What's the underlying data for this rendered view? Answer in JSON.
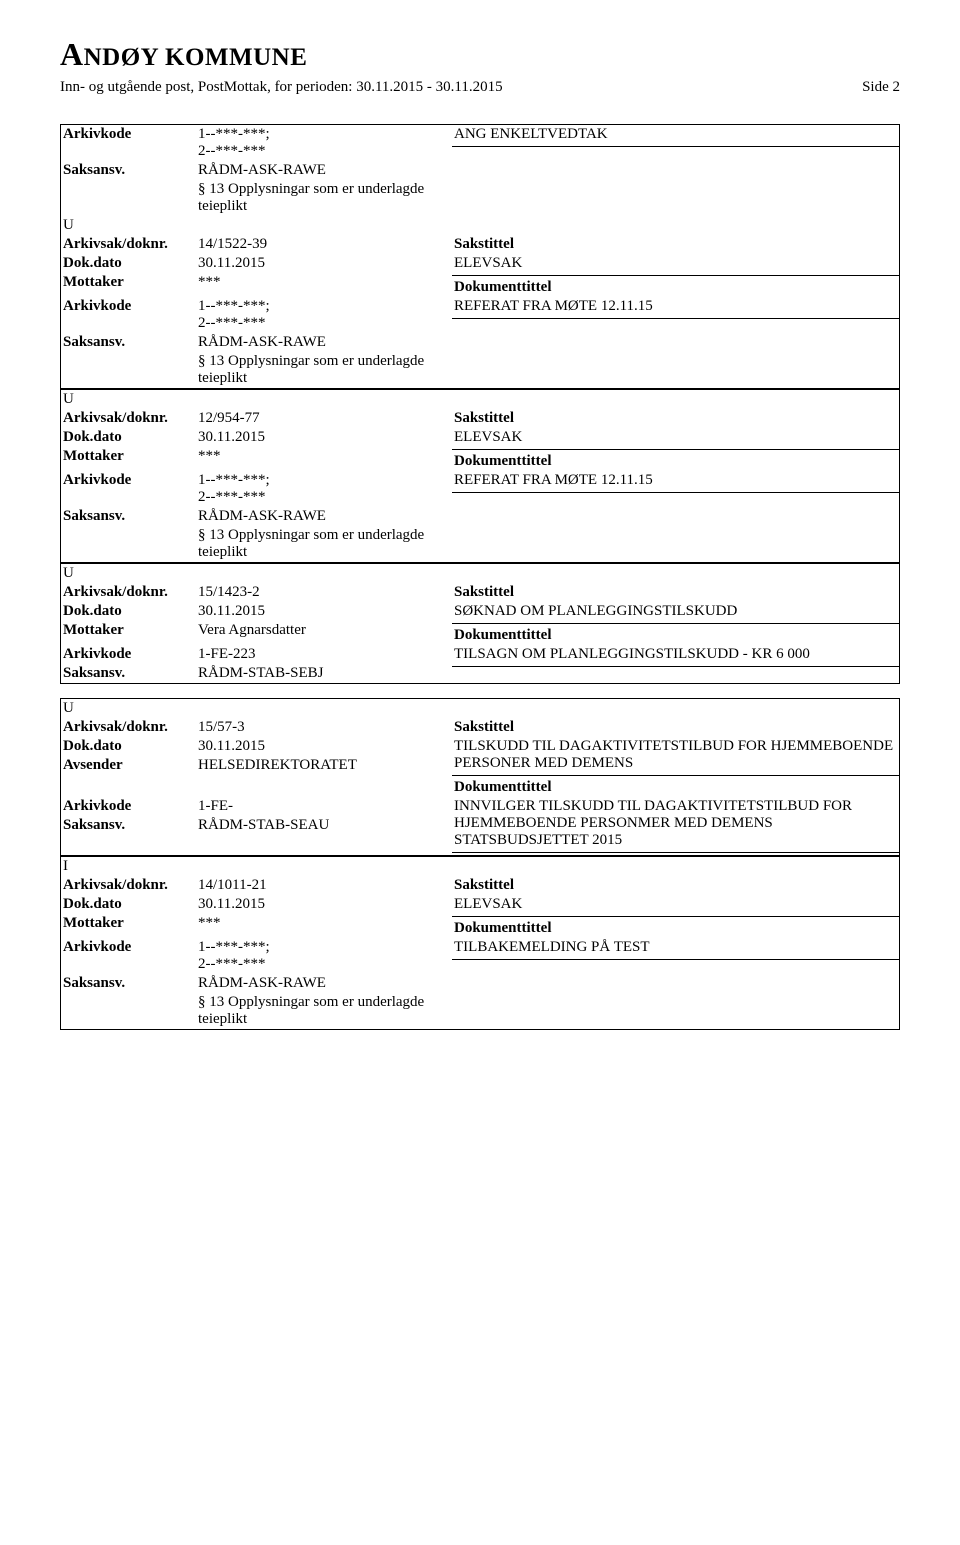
{
  "header": {
    "title_first": "A",
    "title_rest": "NDØY KOMMUNE",
    "subtitle": "Inn- og utgående post, PostMottak, for perioden: 30.11.2015 - 30.11.2015",
    "side": "Side 2"
  },
  "labels": {
    "arkivkode": "Arkivkode",
    "saksansv": "Saksansv.",
    "arkivsak": "Arkivsak/doknr.",
    "dokdato": "Dok.dato",
    "mottaker": "Mottaker",
    "avsender": "Avsender",
    "sakstittel": "Sakstittel",
    "dokumenttittel": "Dokumenttittel"
  },
  "blocks": [
    {
      "pre": {
        "arkivkode": "1--***-***;\n2--***-***",
        "saksansv": "RÅDM-ASK-RAWE",
        "unntak": "§ 13 Opplysningar som er underlagde teieplikt",
        "right_top": "ANG ENKELTVEDTAK"
      },
      "io": "U",
      "arkivsak": "14/1522-39",
      "dokdato": "30.11.2015",
      "party_label": "Mottaker",
      "party": "***",
      "sakstittel": "ELEVSAK",
      "arkivkode": "1--***-***;\n2--***-***",
      "saksansv": "RÅDM-ASK-RAWE",
      "unntak": "§ 13 Opplysningar som er underlagde teieplikt",
      "dokumenttittel": "REFERAT FRA MØTE 12.11.15"
    },
    {
      "io": "U",
      "arkivsak": "12/954-77",
      "dokdato": "30.11.2015",
      "party_label": "Mottaker",
      "party": "***",
      "sakstittel": "ELEVSAK",
      "arkivkode": "1--***-***;\n2--***-***",
      "saksansv": "RÅDM-ASK-RAWE",
      "unntak": "§ 13 Opplysningar som er underlagde teieplikt",
      "dokumenttittel": "REFERAT FRA MØTE 12.11.15"
    },
    {
      "io": "U",
      "arkivsak": "15/1423-2",
      "dokdato": "30.11.2015",
      "party_label": "Mottaker",
      "party": "Vera Agnarsdatter",
      "sakstittel": "SØKNAD OM PLANLEGGINGSTILSKUDD",
      "arkivkode": "1-FE-223",
      "saksansv": "RÅDM-STAB-SEBJ",
      "dokumenttittel": "TILSAGN OM PLANLEGGINGSTILSKUDD  - KR 6 000"
    },
    {
      "io": "U",
      "arkivsak": "15/57-3",
      "dokdato": "30.11.2015",
      "party_label": "Avsender",
      "party": "HELSEDIREKTORATET",
      "sakstittel": "TILSKUDD TIL DAGAKTIVITETSTILBUD FOR HJEMMEBOENDE PERSONER MED DEMENS",
      "arkivkode": "1-FE-",
      "saksansv": "RÅDM-STAB-SEAU",
      "dokumenttittel": "INNVILGER TILSKUDD TIL DAGAKTIVITETSTILBUD FOR HJEMMEBOENDE PERSONMER MED DEMENS STATSBUDSJETTET 2015"
    },
    {
      "io": "I",
      "arkivsak": "14/1011-21",
      "dokdato": "30.11.2015",
      "party_label": "Mottaker",
      "party": "***",
      "sakstittel": "ELEVSAK",
      "arkivkode": "1--***-***;\n2--***-***",
      "saksansv": "RÅDM-ASK-RAWE",
      "unntak": "§ 13 Opplysningar som er underlagde teieplikt",
      "dokumenttittel": "TILBAKEMELDING PÅ TEST"
    }
  ]
}
